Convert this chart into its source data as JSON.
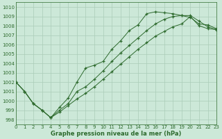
{
  "title": "Graphe pression niveau de la mer (hPa)",
  "bg_color": "#cce8d8",
  "grid_color": "#aaccb8",
  "line_color": "#2d6a2d",
  "xlim": [
    0,
    23
  ],
  "ylim": [
    997.5,
    1010.5
  ],
  "yticks": [
    998,
    999,
    1000,
    1001,
    1002,
    1003,
    1004,
    1005,
    1006,
    1007,
    1008,
    1009,
    1010
  ],
  "xticks": [
    0,
    1,
    2,
    3,
    4,
    5,
    6,
    7,
    8,
    9,
    10,
    11,
    12,
    13,
    14,
    15,
    16,
    17,
    18,
    19,
    20,
    21,
    22,
    23
  ],
  "series1_x": [
    0,
    1,
    2,
    3,
    4,
    5,
    6,
    7,
    8,
    9,
    10,
    11,
    12,
    13,
    14,
    15,
    16,
    17,
    18,
    19,
    20,
    21,
    22,
    23
  ],
  "series1_y": [
    1002.0,
    1001.0,
    999.7,
    999.0,
    998.2,
    999.3,
    1000.3,
    1002.0,
    1003.5,
    1003.8,
    1004.2,
    1005.5,
    1006.4,
    1007.5,
    1008.1,
    1009.3,
    1009.5,
    1009.4,
    1009.3,
    1009.1,
    1008.9,
    1008.2,
    1008.1,
    1007.7
  ],
  "series2_x": [
    0,
    1,
    2,
    3,
    4,
    5,
    6,
    7,
    8,
    9,
    10,
    11,
    12,
    13,
    14,
    15,
    16,
    17,
    18,
    19,
    20,
    21,
    22,
    23
  ],
  "series2_y": [
    1002.0,
    1001.0,
    999.7,
    999.0,
    998.2,
    999.0,
    999.7,
    1001.0,
    1001.5,
    1002.3,
    1003.2,
    1004.2,
    1005.1,
    1005.9,
    1006.7,
    1007.5,
    1008.2,
    1008.7,
    1009.0,
    1009.1,
    1009.1,
    1008.5,
    1007.9,
    1007.6
  ],
  "series3_x": [
    0,
    1,
    2,
    3,
    4,
    5,
    6,
    7,
    8,
    9,
    10,
    11,
    12,
    13,
    14,
    15,
    16,
    17,
    18,
    19,
    20,
    21,
    22,
    23
  ],
  "series3_y": [
    1002.0,
    1001.0,
    999.7,
    999.0,
    998.2,
    998.8,
    999.5,
    1000.2,
    1000.8,
    1001.5,
    1002.3,
    1003.1,
    1003.9,
    1004.7,
    1005.5,
    1006.2,
    1006.9,
    1007.4,
    1007.9,
    1008.2,
    1009.0,
    1008.0,
    1007.7,
    1007.6
  ]
}
